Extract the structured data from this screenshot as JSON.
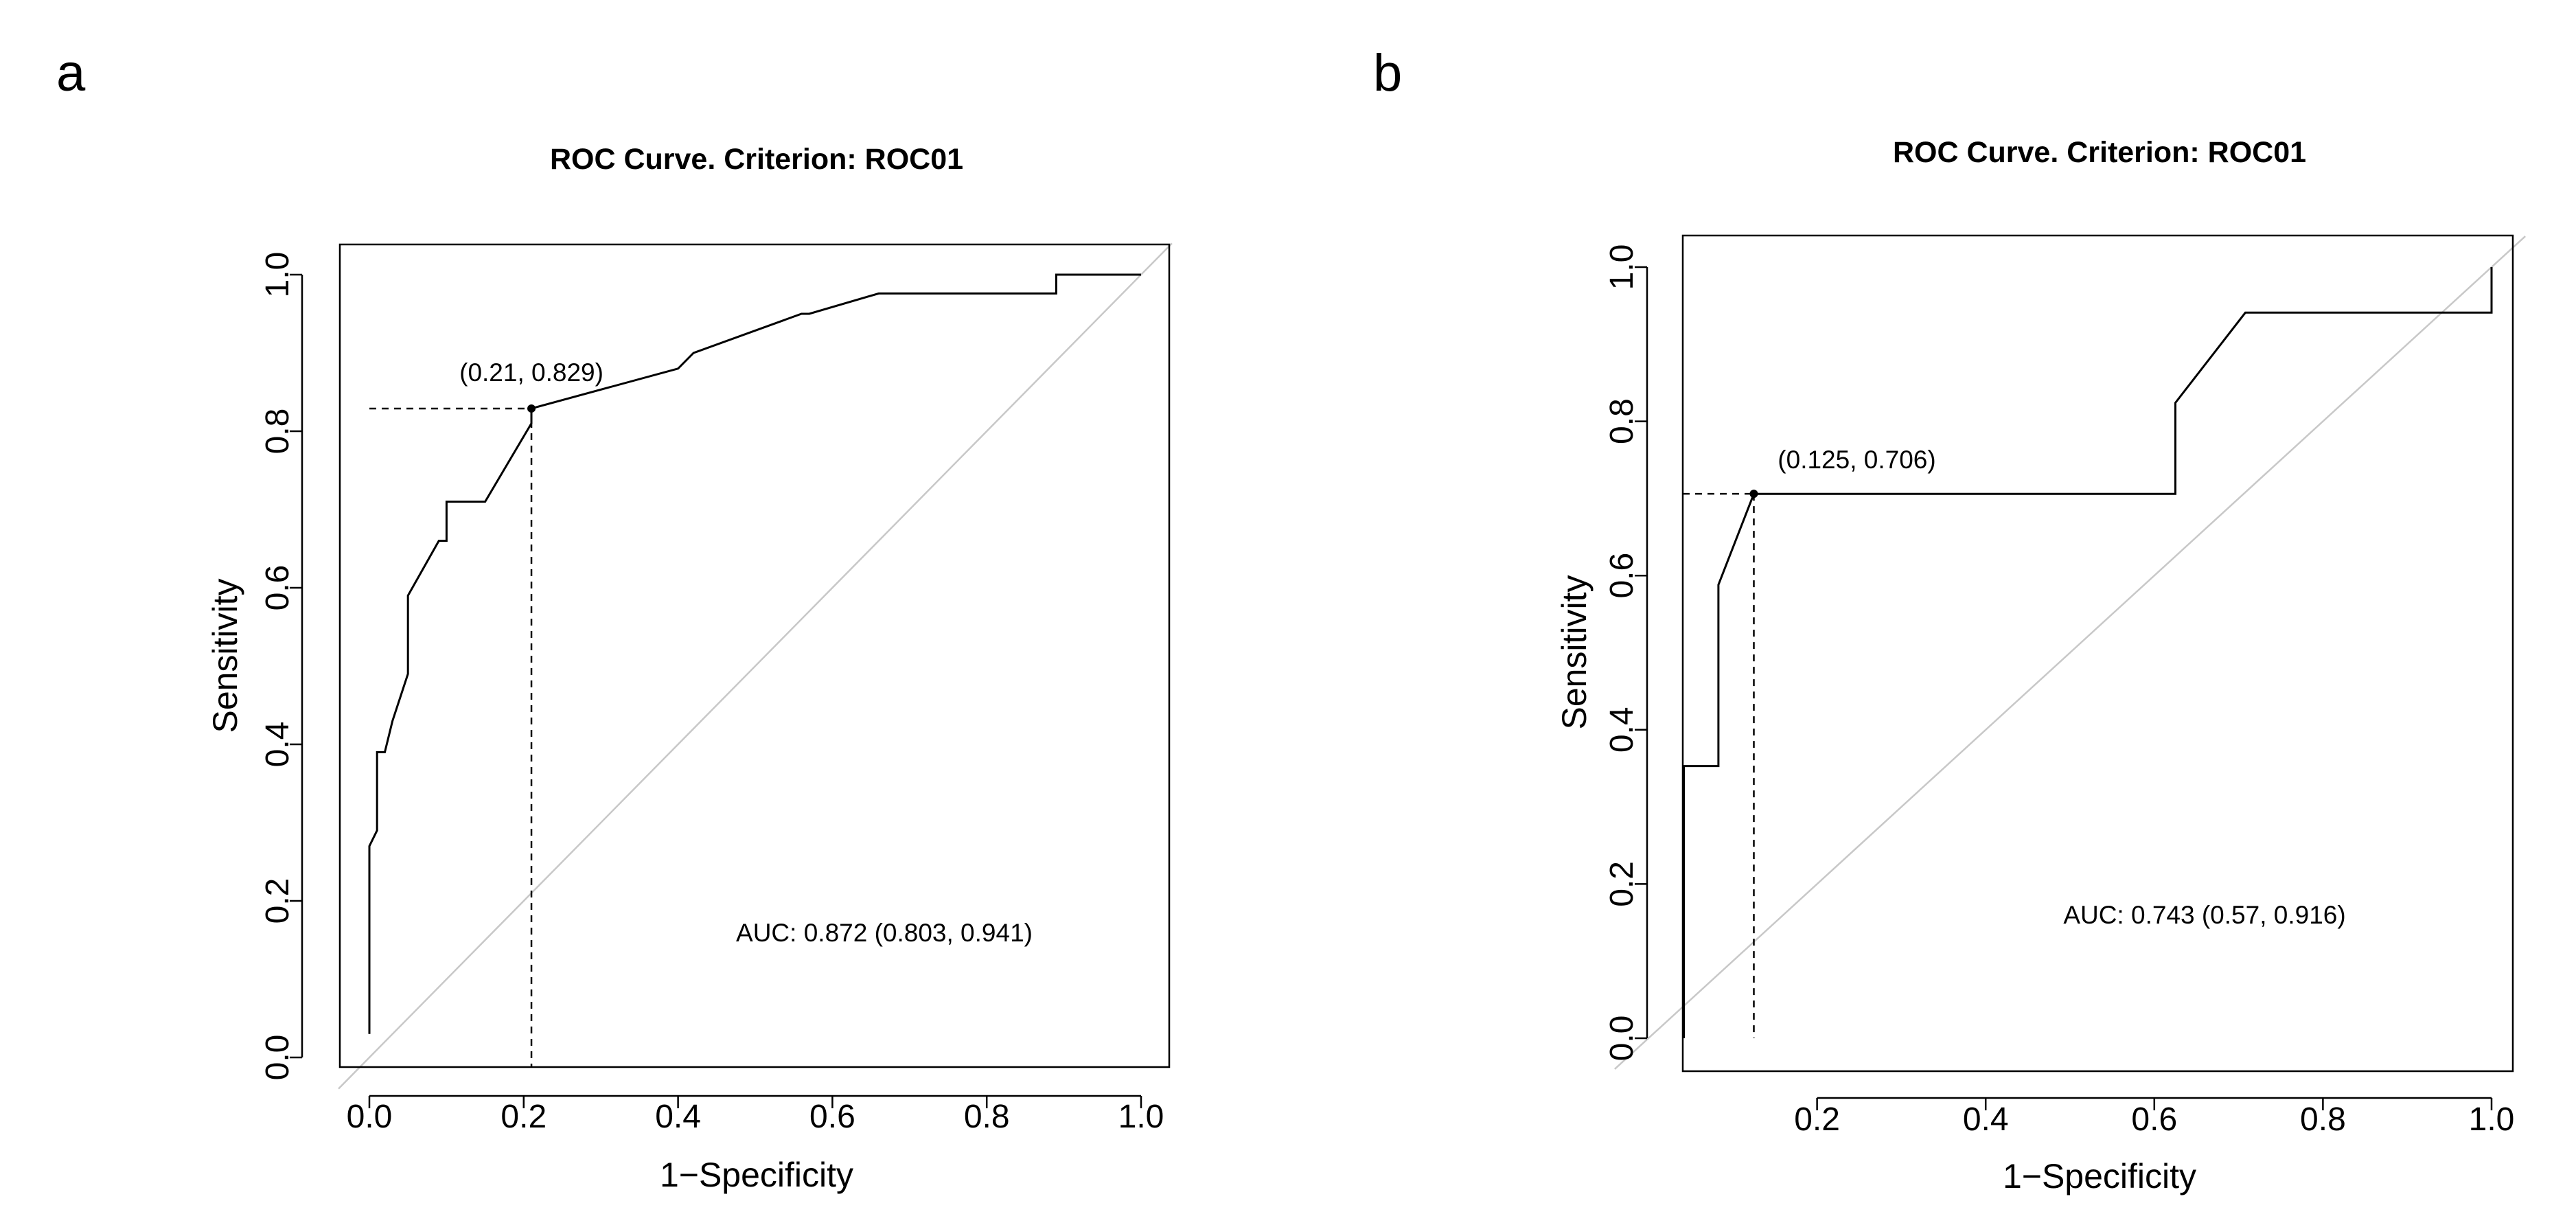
{
  "chart_data": [
    {
      "panel": "a",
      "type": "line",
      "title": "ROC Curve. Criterion: ROC01",
      "xlabel": "1−Specificity",
      "ylabel": "Sensitivity",
      "xlim": [
        0,
        1
      ],
      "ylim": [
        0,
        1
      ],
      "xticks": [
        0.0,
        0.2,
        0.4,
        0.6,
        0.8,
        1.0
      ],
      "xtick_labels": [
        "0.0",
        "0.2",
        "0.4",
        "0.6",
        "0.8",
        "1.0"
      ],
      "yticks": [
        0.0,
        0.2,
        0.4,
        0.6,
        0.8,
        1.0
      ],
      "ytick_labels": [
        "0.0",
        "0.2",
        "0.4",
        "0.6",
        "0.8",
        "1.0"
      ],
      "series": [
        {
          "name": "ROC",
          "x": [
            0.0,
            0.0,
            0.01,
            0.01,
            0.02,
            0.02,
            0.03,
            0.05,
            0.05,
            0.09,
            0.1,
            0.1,
            0.15,
            0.21,
            0.21,
            0.4,
            0.42,
            0.56,
            0.57,
            0.66,
            0.89,
            0.89,
            1.0
          ],
          "y": [
            0.03,
            0.27,
            0.29,
            0.39,
            0.39,
            0.39,
            0.43,
            0.49,
            0.59,
            0.66,
            0.66,
            0.71,
            0.71,
            0.81,
            0.829,
            0.88,
            0.9,
            0.95,
            0.95,
            0.976,
            0.976,
            1.0,
            1.0
          ]
        }
      ],
      "cutoff_point": {
        "x": 0.21,
        "y": 0.829,
        "label": "(0.21, 0.829)"
      },
      "auc_text": "AUC: 0.872 (0.803, 0.941)"
    },
    {
      "panel": "b",
      "type": "line",
      "title": "ROC Curve. Criterion: ROC01",
      "xlabel": "1−Specificity",
      "ylabel": "Sensitivity",
      "xlim": [
        0,
        1
      ],
      "ylim": [
        0,
        1
      ],
      "xticks": [
        0.2,
        0.4,
        0.6,
        0.8,
        1.0
      ],
      "xtick_labels": [
        "0.2",
        "0.4",
        "0.6",
        "0.8",
        "1.0"
      ],
      "yticks": [
        0.0,
        0.2,
        0.4,
        0.6,
        0.8,
        1.0
      ],
      "ytick_labels": [
        "0.0",
        "0.2",
        "0.4",
        "0.6",
        "0.8",
        "1.0"
      ],
      "series": [
        {
          "name": "ROC",
          "x": [
            0.042,
            0.042,
            0.083,
            0.083,
            0.125,
            0.625,
            0.625,
            0.708,
            1.0,
            1.0
          ],
          "y": [
            0.0,
            0.353,
            0.353,
            0.588,
            0.706,
            0.706,
            0.824,
            0.941,
            0.941,
            1.0
          ]
        }
      ],
      "cutoff_point": {
        "x": 0.125,
        "y": 0.706,
        "label": "(0.125, 0.706)"
      },
      "auc_text": "AUC: 0.743 (0.57, 0.916)"
    }
  ]
}
